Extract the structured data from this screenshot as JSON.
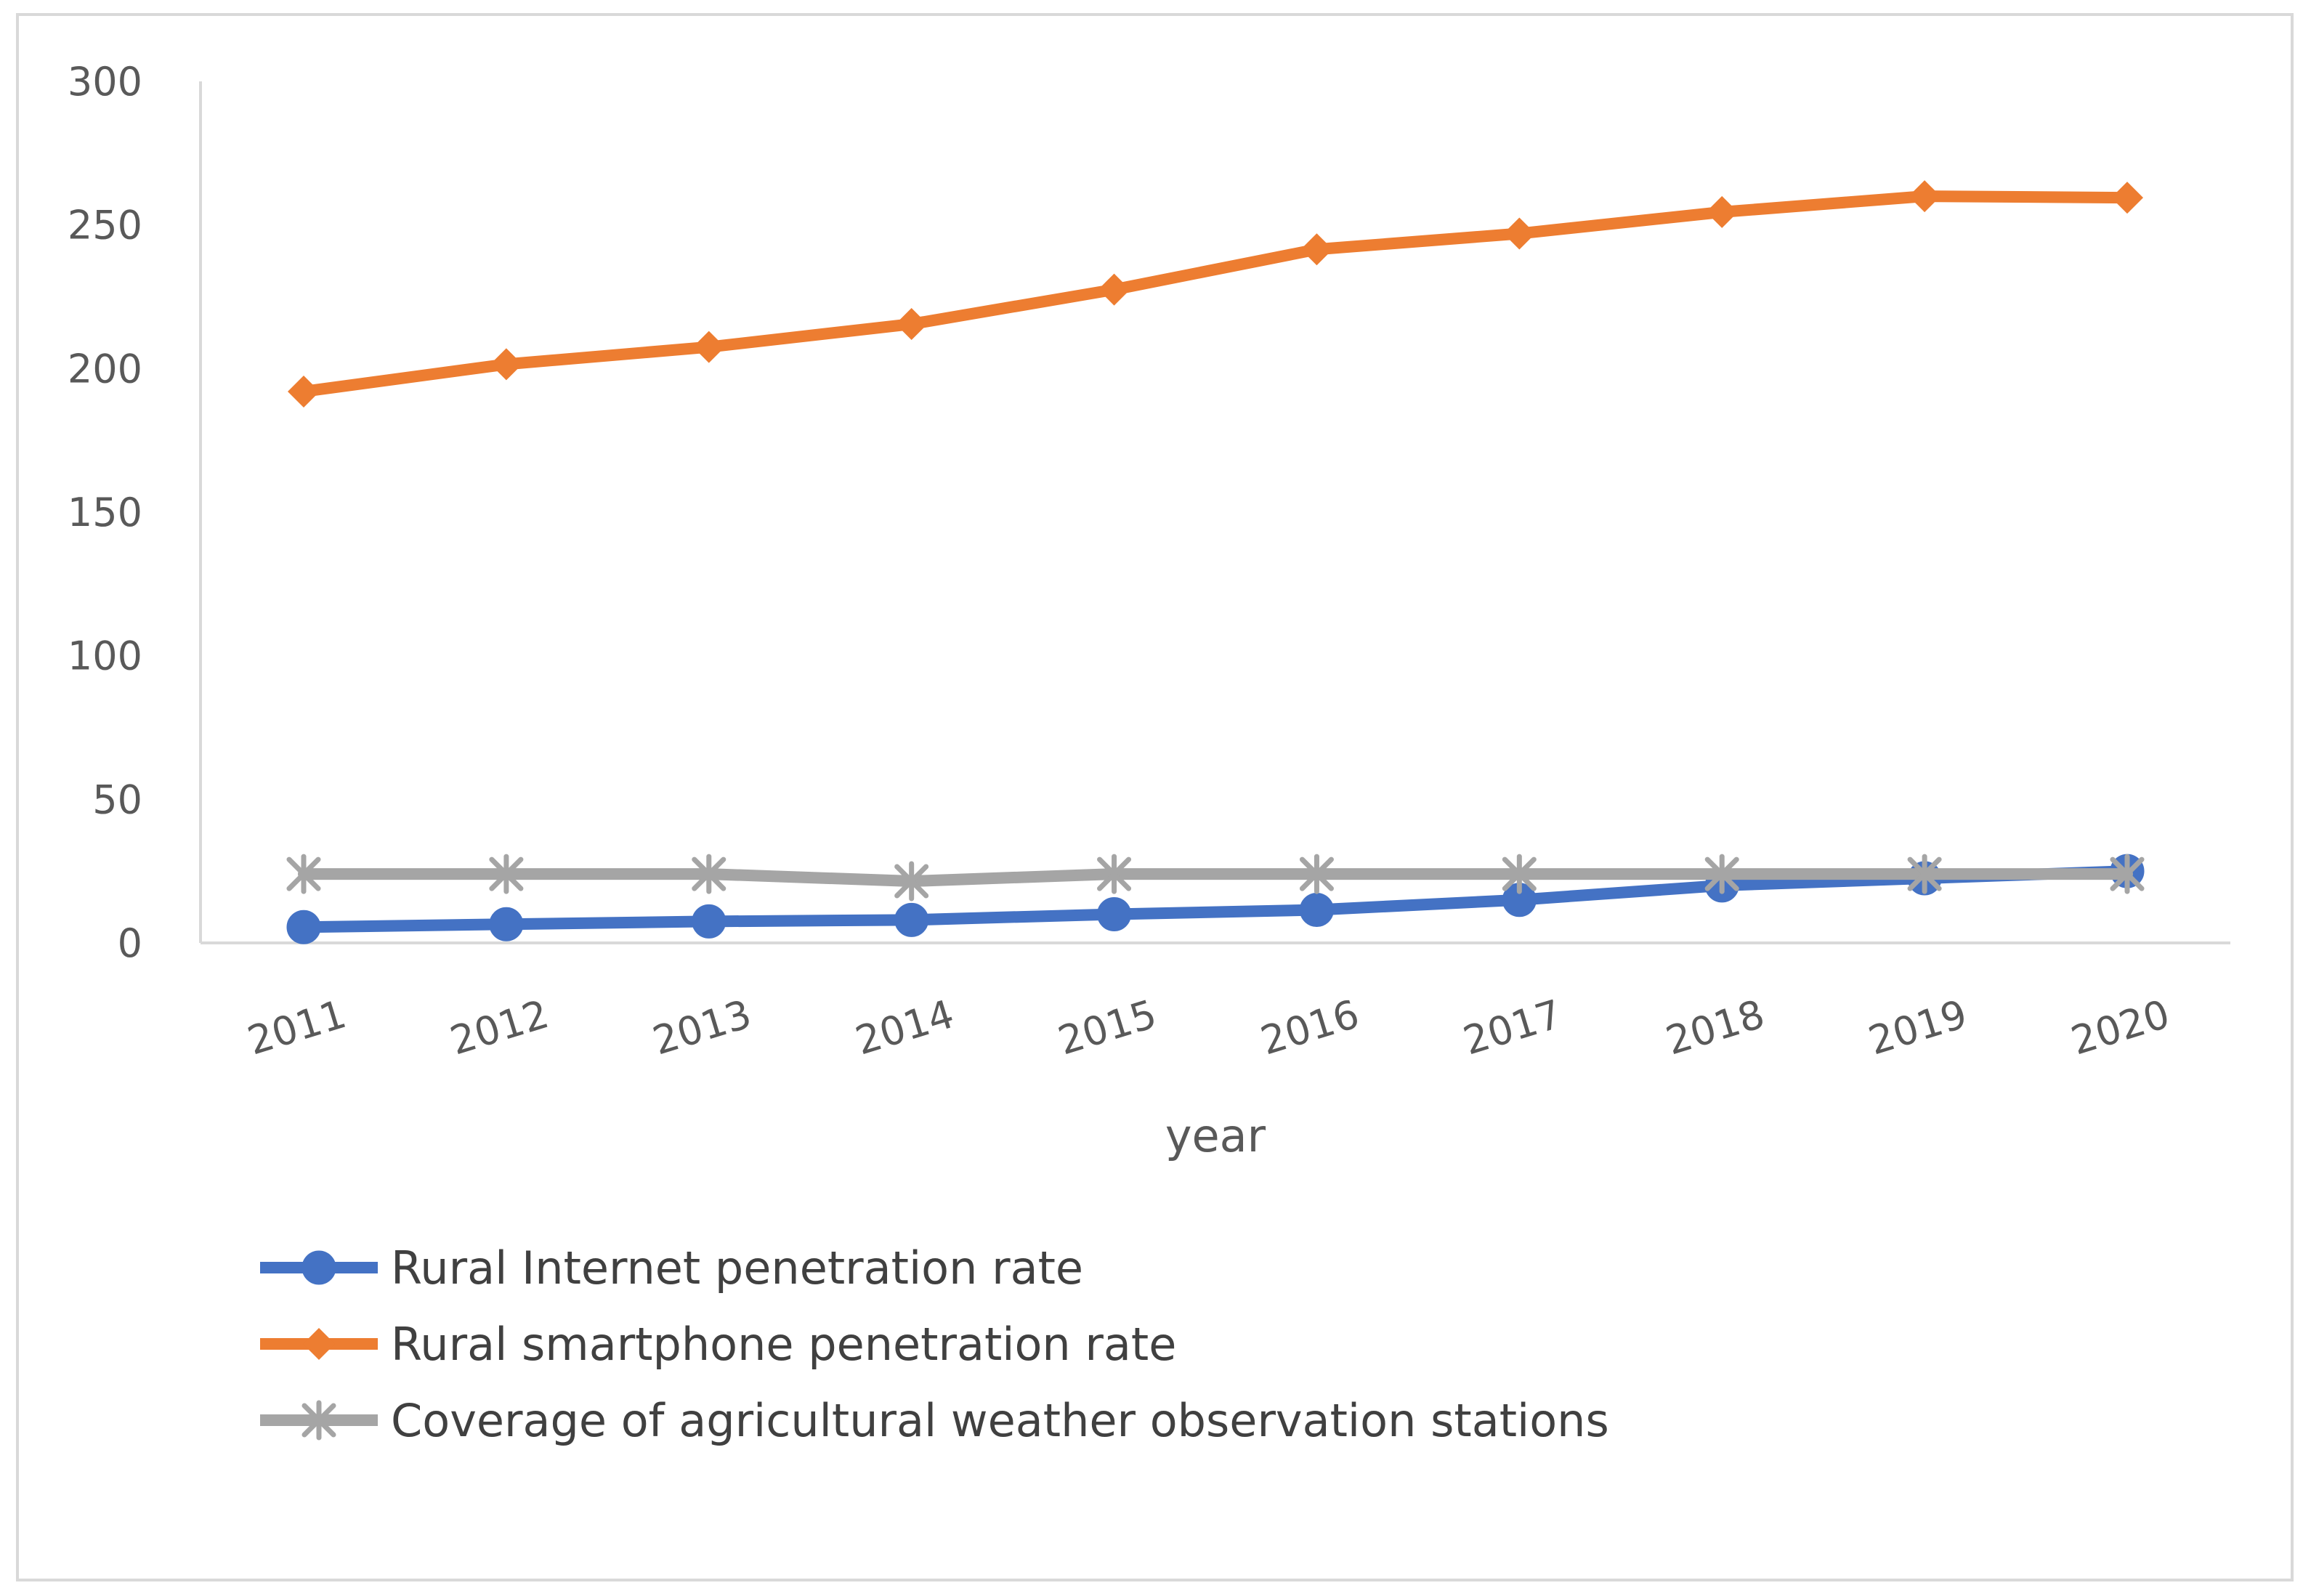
{
  "chart_data": {
    "type": "line",
    "title": "",
    "xlabel": "year",
    "ylabel": "",
    "ylim": [
      0,
      300
    ],
    "yticks": [
      "0",
      "50",
      "100",
      "150",
      "200",
      "250",
      "300"
    ],
    "categories": [
      "2011",
      "2012",
      "2013",
      "2014",
      "2015",
      "2016",
      "2017",
      "2018",
      "2019",
      "2020"
    ],
    "grid": false,
    "legend_position": "bottom-left",
    "series": [
      {
        "name": "Rural Internet penetration rate",
        "color": "#4472C4",
        "marker": "circle",
        "values": [
          5.5,
          6.5,
          7.5,
          8,
          10,
          11.5,
          15,
          20,
          22.5,
          25
        ]
      },
      {
        "name": "Rural smartphone penetration rate",
        "color": "#ED7D31",
        "marker": "diamond",
        "values": [
          192,
          201.5,
          207.5,
          215.5,
          227.5,
          241.5,
          247,
          254.5,
          260,
          259.5
        ]
      },
      {
        "name": "Coverage of agricultural weather observation stations",
        "color": "#A5A5A5",
        "marker": "star",
        "values": [
          24,
          24,
          24,
          21.5,
          24,
          24,
          24,
          24,
          24,
          24
        ]
      }
    ]
  }
}
